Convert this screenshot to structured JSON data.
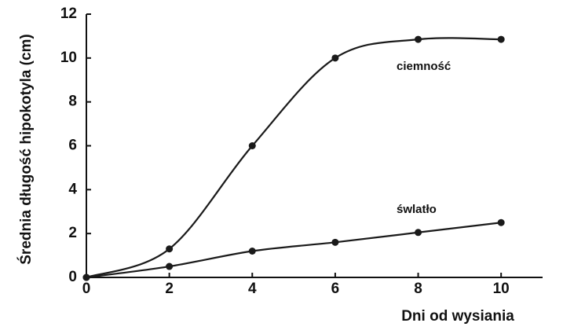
{
  "chart_data": {
    "type": "line",
    "x_label": "Dni od wysiania",
    "y_label": "Średnia długość hipokotyla (cm)",
    "x": [
      0,
      2,
      4,
      6,
      8,
      10
    ],
    "series": [
      {
        "name": "ciemność",
        "color": "#1a1a1a",
        "values": [
          0,
          1.3,
          6,
          10,
          10.85,
          10.85
        ]
      },
      {
        "name": "śwlatło",
        "color": "#1a1a1a",
        "values": [
          0,
          0.5,
          1.2,
          1.6,
          2.05,
          2.5
        ]
      }
    ],
    "xlim": [
      0,
      11
    ],
    "ylim": [
      0,
      12
    ],
    "xticks": [
      0,
      2,
      4,
      6,
      8,
      10
    ],
    "yticks": [
      0,
      2,
      4,
      6,
      8,
      10,
      12
    ]
  }
}
